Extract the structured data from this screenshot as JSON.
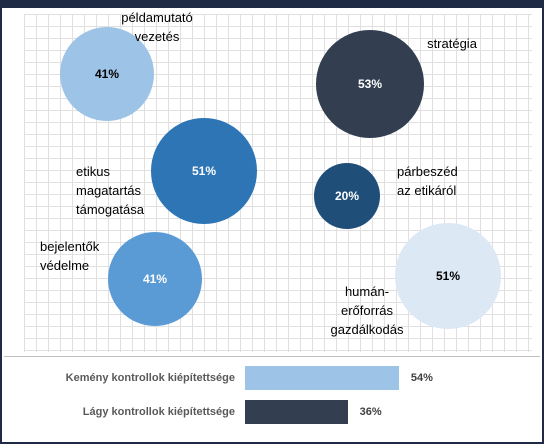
{
  "chart_data": [
    {
      "type": "bubble",
      "categories": [
        "példamutató\nvezetés",
        "stratégia",
        "etikus\nmagatartás\ntámogatása",
        "párbeszéd\naz etikáról",
        "bejelentők\nvédelme",
        "humán-\nerőforrás\ngazdálkodás"
      ],
      "values": [
        41,
        53,
        51,
        20,
        41,
        51
      ],
      "value_labels": [
        "41%",
        "53%",
        "51%",
        "20%",
        "41%",
        "51%"
      ],
      "colors": [
        "#9dc3e6",
        "#333f50",
        "#2e75b6",
        "#1f4e79",
        "#5b9bd5",
        "#dde8f5"
      ]
    },
    {
      "type": "bar",
      "categories": [
        "Kemény kontrollok kiépítettsége",
        "Lágy kontrollok kiépítettsége"
      ],
      "values": [
        54,
        36
      ],
      "value_labels": [
        "54%",
        "36%"
      ],
      "colors": [
        "#9dc3e6",
        "#333f50"
      ]
    }
  ]
}
